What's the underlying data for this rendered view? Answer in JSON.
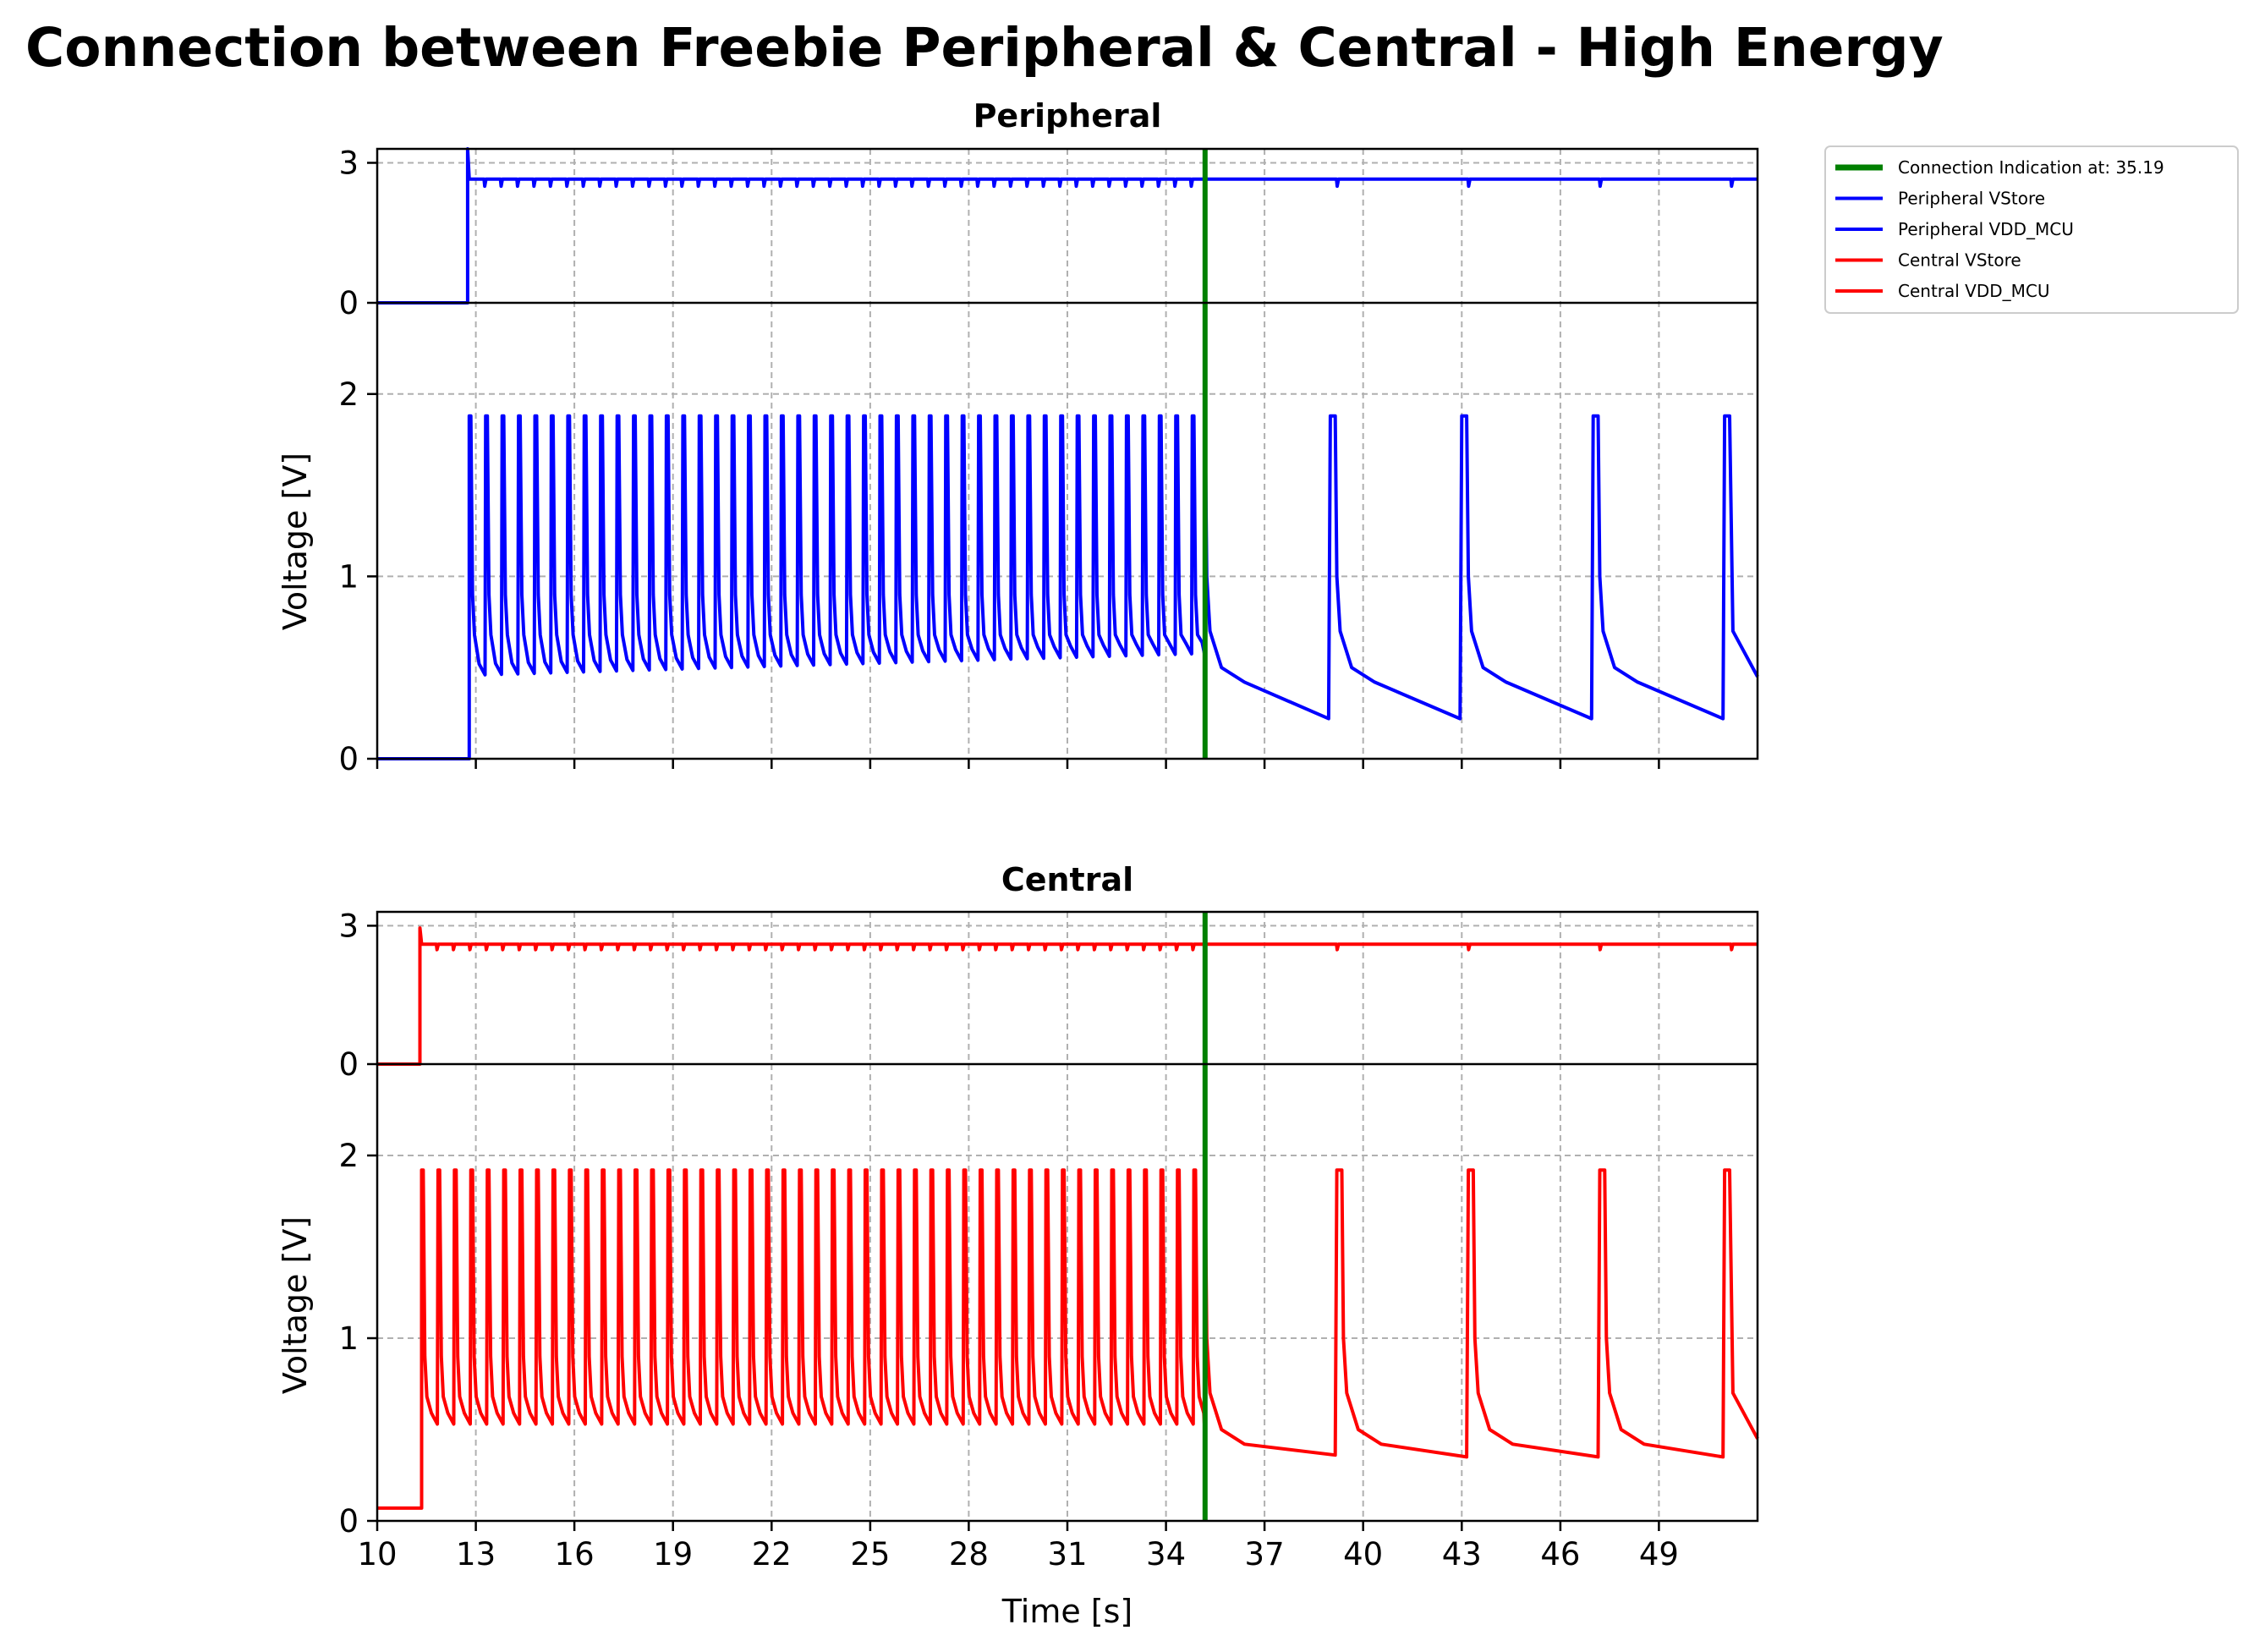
{
  "title": "Connection between Freebie Peripheral & Central - High Energy",
  "colors": {
    "peripheral": "#0000ff",
    "central": "#ff0000",
    "connection": "#008000",
    "grid": "#b0b0b0"
  },
  "legend": {
    "placement": "outside-upper-right",
    "entries": [
      {
        "label": "Connection Indication at: 35.19",
        "color": "#008000"
      },
      {
        "label": "Peripheral VStore",
        "color": "#0000ff"
      },
      {
        "label": "Peripheral VDD_MCU",
        "color": "#0000ff"
      },
      {
        "label": "Central VStore",
        "color": "#ff0000"
      },
      {
        "label": "Central VDD_MCU",
        "color": "#ff0000"
      }
    ]
  },
  "chart_data": [
    {
      "type": "line",
      "title": "Peripheral",
      "xlabel": "",
      "ylabel": "Voltage [V]",
      "xlim": [
        10,
        52
      ],
      "x_ticks": [
        10,
        13,
        16,
        19,
        22,
        25,
        28,
        31,
        34,
        37,
        40,
        43,
        46,
        49
      ],
      "upper_panel": {
        "ylim": [
          0,
          3.3
        ],
        "y_ticks": [
          0,
          3
        ]
      },
      "lower_panel": {
        "ylim": [
          0,
          2.5
        ],
        "y_ticks": [
          0,
          1,
          2
        ]
      },
      "grid": true,
      "connection_time": 35.19,
      "series": [
        {
          "name": "Peripheral VStore",
          "panel": "upper",
          "color": "#0000ff",
          "off_level": 0,
          "on_time": 12.75,
          "overshoot": 3.3,
          "level": 2.65,
          "dip": 2.5,
          "advertising_interval": 0.5,
          "connection_interval": 4.0
        },
        {
          "name": "Peripheral VDD_MCU",
          "panel": "lower",
          "color": "#0000ff",
          "off_level": 0,
          "on_time": 12.8,
          "peak": 1.88,
          "advertising_interval": 0.5,
          "advertising_troughs": [
            0.46,
            0.58
          ],
          "connection_peaks": [
            39.0,
            43.0,
            47.0,
            51.0
          ],
          "connection_troughs": [
            0.22,
            0.22,
            0.22,
            0.22
          ]
        }
      ]
    },
    {
      "type": "line",
      "title": "Central",
      "xlabel": "Time [s]",
      "ylabel": "Voltage [V]",
      "xlim": [
        10,
        52
      ],
      "x_ticks": [
        10,
        13,
        16,
        19,
        22,
        25,
        28,
        31,
        34,
        37,
        40,
        43,
        46,
        49
      ],
      "upper_panel": {
        "ylim": [
          0,
          3.3
        ],
        "y_ticks": [
          0,
          3
        ]
      },
      "lower_panel": {
        "ylim": [
          0,
          2.5
        ],
        "y_ticks": [
          0,
          1,
          2
        ]
      },
      "grid": true,
      "connection_time": 35.19,
      "series": [
        {
          "name": "Central VStore",
          "panel": "upper",
          "color": "#ff0000",
          "off_level": 0,
          "on_time": 11.3,
          "overshoot": 2.95,
          "level": 2.6,
          "dip": 2.48,
          "advertising_interval": 0.5,
          "connection_interval": 4.0
        },
        {
          "name": "Central VDD_MCU",
          "panel": "lower",
          "color": "#ff0000",
          "off_level": 0.07,
          "on_time": 11.35,
          "peak": 1.92,
          "advertising_interval": 0.5,
          "advertising_troughs": [
            0.53,
            0.53
          ],
          "connection_peaks": [
            39.2,
            43.2,
            47.2,
            51.0
          ],
          "connection_troughs": [
            0.36,
            0.35,
            0.35,
            0.35
          ]
        }
      ]
    }
  ]
}
